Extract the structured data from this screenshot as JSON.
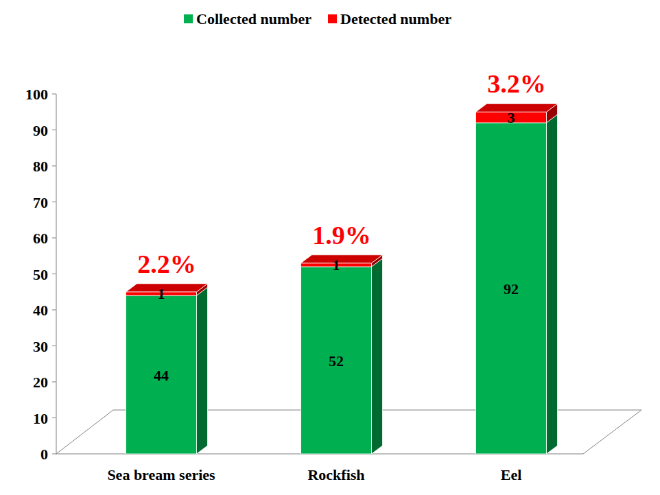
{
  "chart_data": {
    "type": "bar",
    "stacked": true,
    "data_labels": true,
    "categories": [
      "Sea bream series",
      "Rockfish",
      "Eel"
    ],
    "series": [
      {
        "name": "Collected number",
        "color": "#00b050",
        "values": [
          44,
          52,
          92
        ]
      },
      {
        "name": "Detected number",
        "color": "#ff0000",
        "values": [
          1,
          1,
          3
        ]
      }
    ],
    "annotations": [
      "2.2%",
      "1.9%",
      "3.2%"
    ],
    "ylim": [
      0,
      100
    ],
    "yticks": [
      0,
      10,
      20,
      30,
      40,
      50,
      60,
      70,
      80,
      90,
      100
    ],
    "grid": false,
    "legend": "top"
  }
}
